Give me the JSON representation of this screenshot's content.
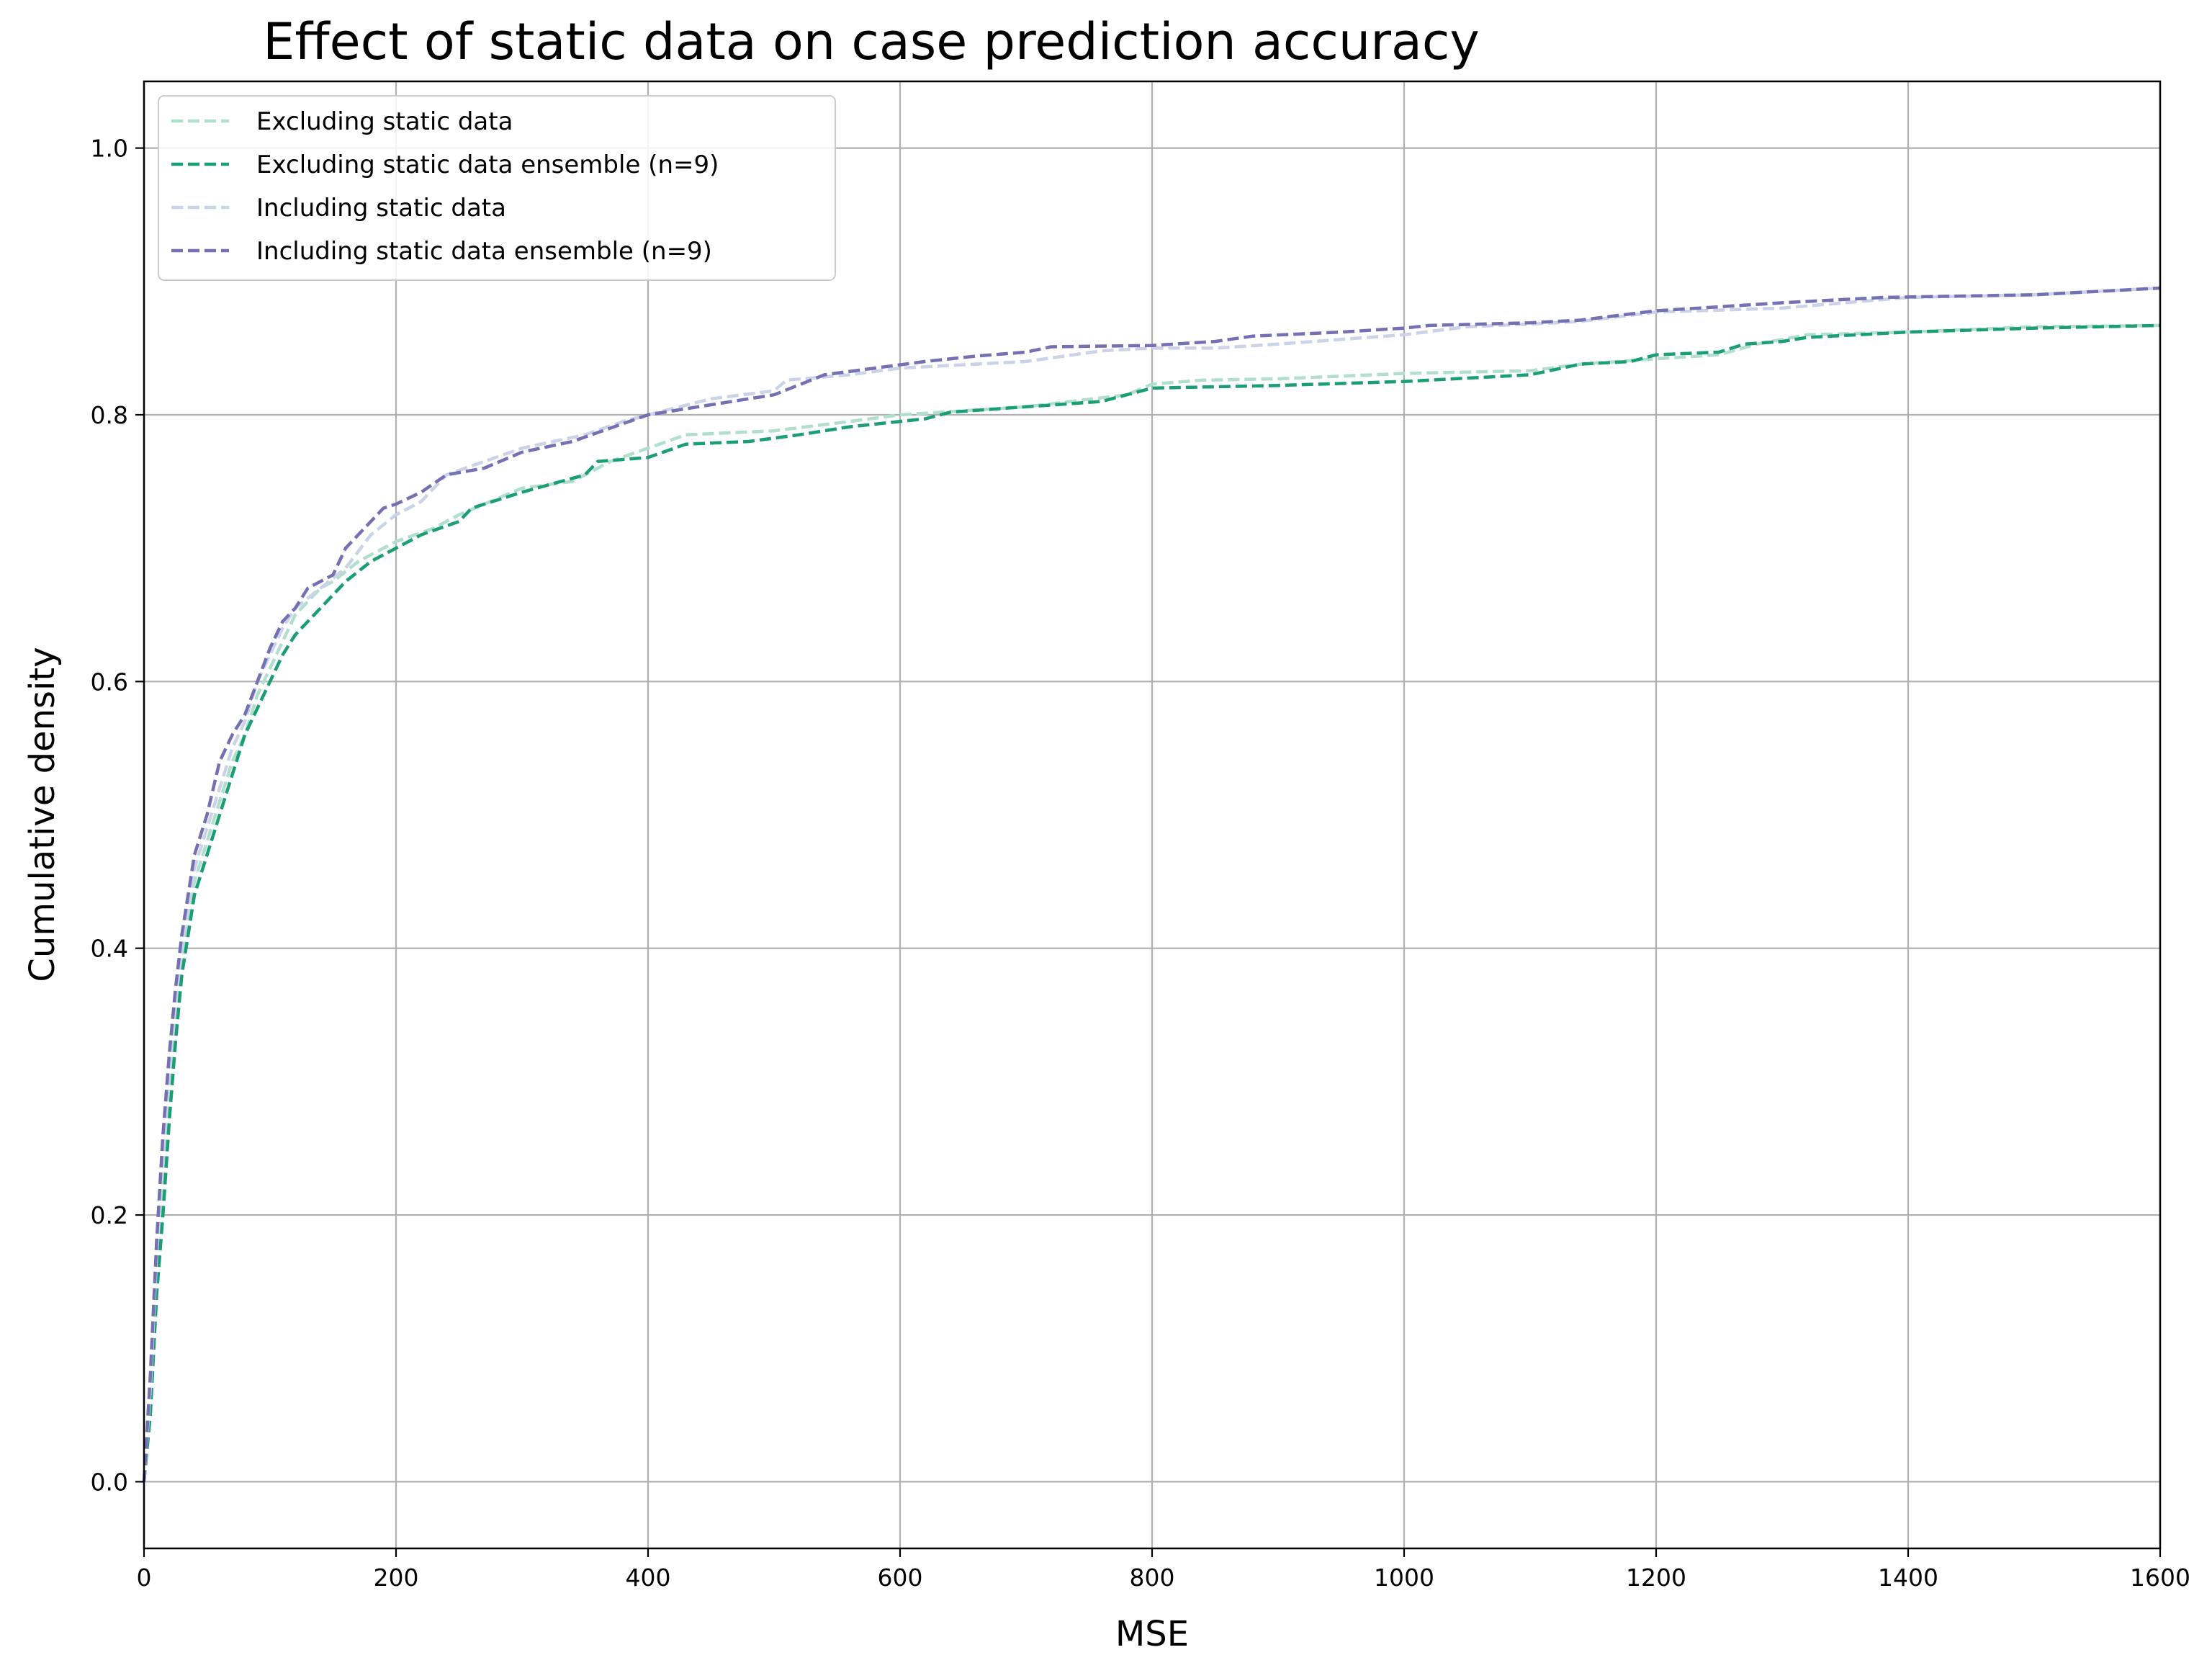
{
  "chart_data": {
    "type": "line",
    "title": "Effect of static data on case prediction accuracy",
    "xlabel": "MSE",
    "ylabel": "Cumulative density",
    "xlim": [
      0,
      1600
    ],
    "ylim": [
      -0.05,
      1.05
    ],
    "xticks": [
      0,
      200,
      400,
      600,
      800,
      1000,
      1200,
      1400,
      1600
    ],
    "xtick_labels": [
      "0",
      "200",
      "400",
      "600",
      "800",
      "1000",
      "1200",
      "1400",
      "1600"
    ],
    "yticks": [
      0.0,
      0.2,
      0.4,
      0.6,
      0.8,
      1.0
    ],
    "ytick_labels": [
      "0.0",
      "0.2",
      "0.4",
      "0.6",
      "0.8",
      "1.0"
    ],
    "grid": true,
    "legend_position": "top-left",
    "series": [
      {
        "name": "Excluding static data",
        "color": "#b2dfcc",
        "style": "dashed",
        "points": [
          [
            0,
            0.0
          ],
          [
            5,
            0.06
          ],
          [
            10,
            0.15
          ],
          [
            15,
            0.22
          ],
          [
            20,
            0.29
          ],
          [
            25,
            0.35
          ],
          [
            30,
            0.39
          ],
          [
            35,
            0.42
          ],
          [
            40,
            0.45
          ],
          [
            50,
            0.48
          ],
          [
            60,
            0.51
          ],
          [
            70,
            0.54
          ],
          [
            80,
            0.56
          ],
          [
            90,
            0.59
          ],
          [
            100,
            0.61
          ],
          [
            110,
            0.63
          ],
          [
            120,
            0.65
          ],
          [
            130,
            0.66
          ],
          [
            140,
            0.67
          ],
          [
            150,
            0.675
          ],
          [
            170,
            0.69
          ],
          [
            200,
            0.705
          ],
          [
            230,
            0.715
          ],
          [
            250,
            0.725
          ],
          [
            300,
            0.745
          ],
          [
            340,
            0.75
          ],
          [
            370,
            0.765
          ],
          [
            400,
            0.775
          ],
          [
            430,
            0.785
          ],
          [
            500,
            0.788
          ],
          [
            560,
            0.795
          ],
          [
            600,
            0.8
          ],
          [
            700,
            0.806
          ],
          [
            780,
            0.815
          ],
          [
            800,
            0.823
          ],
          [
            840,
            0.826
          ],
          [
            900,
            0.827
          ],
          [
            950,
            0.829
          ],
          [
            1000,
            0.831
          ],
          [
            1100,
            0.833
          ],
          [
            1140,
            0.838
          ],
          [
            1200,
            0.842
          ],
          [
            1250,
            0.845
          ],
          [
            1280,
            0.853
          ],
          [
            1320,
            0.86
          ],
          [
            1400,
            0.862
          ],
          [
            1500,
            0.866
          ],
          [
            1600,
            0.867
          ]
        ]
      },
      {
        "name": "Excluding static data ensemble (n=9)",
        "color": "#1b9e77",
        "style": "dashed",
        "points": [
          [
            0,
            0.0
          ],
          [
            5,
            0.05
          ],
          [
            10,
            0.14
          ],
          [
            15,
            0.2
          ],
          [
            20,
            0.27
          ],
          [
            25,
            0.33
          ],
          [
            30,
            0.38
          ],
          [
            35,
            0.41
          ],
          [
            40,
            0.44
          ],
          [
            50,
            0.47
          ],
          [
            60,
            0.5
          ],
          [
            70,
            0.53
          ],
          [
            80,
            0.56
          ],
          [
            90,
            0.58
          ],
          [
            100,
            0.6
          ],
          [
            110,
            0.62
          ],
          [
            120,
            0.635
          ],
          [
            140,
            0.655
          ],
          [
            160,
            0.675
          ],
          [
            180,
            0.69
          ],
          [
            200,
            0.7
          ],
          [
            220,
            0.71
          ],
          [
            250,
            0.72
          ],
          [
            260,
            0.73
          ],
          [
            300,
            0.742
          ],
          [
            350,
            0.755
          ],
          [
            360,
            0.765
          ],
          [
            400,
            0.768
          ],
          [
            430,
            0.778
          ],
          [
            480,
            0.78
          ],
          [
            520,
            0.785
          ],
          [
            560,
            0.791
          ],
          [
            620,
            0.797
          ],
          [
            640,
            0.802
          ],
          [
            700,
            0.806
          ],
          [
            760,
            0.81
          ],
          [
            800,
            0.82
          ],
          [
            900,
            0.822
          ],
          [
            1000,
            0.825
          ],
          [
            1100,
            0.83
          ],
          [
            1140,
            0.838
          ],
          [
            1180,
            0.84
          ],
          [
            1200,
            0.845
          ],
          [
            1250,
            0.847
          ],
          [
            1270,
            0.853
          ],
          [
            1300,
            0.855
          ],
          [
            1320,
            0.858
          ],
          [
            1400,
            0.862
          ],
          [
            1500,
            0.865
          ],
          [
            1600,
            0.867
          ]
        ]
      },
      {
        "name": "Including static data",
        "color": "#cbd3e8",
        "style": "dashed",
        "points": [
          [
            0,
            0.0
          ],
          [
            5,
            0.07
          ],
          [
            10,
            0.17
          ],
          [
            15,
            0.25
          ],
          [
            20,
            0.31
          ],
          [
            25,
            0.36
          ],
          [
            30,
            0.4
          ],
          [
            35,
            0.43
          ],
          [
            40,
            0.46
          ],
          [
            50,
            0.49
          ],
          [
            60,
            0.52
          ],
          [
            70,
            0.55
          ],
          [
            80,
            0.57
          ],
          [
            90,
            0.6
          ],
          [
            100,
            0.62
          ],
          [
            110,
            0.64
          ],
          [
            120,
            0.655
          ],
          [
            140,
            0.67
          ],
          [
            160,
            0.685
          ],
          [
            180,
            0.71
          ],
          [
            200,
            0.725
          ],
          [
            220,
            0.735
          ],
          [
            240,
            0.755
          ],
          [
            270,
            0.765
          ],
          [
            300,
            0.775
          ],
          [
            350,
            0.785
          ],
          [
            380,
            0.795
          ],
          [
            400,
            0.8
          ],
          [
            450,
            0.812
          ],
          [
            500,
            0.818
          ],
          [
            510,
            0.826
          ],
          [
            560,
            0.83
          ],
          [
            600,
            0.835
          ],
          [
            700,
            0.84
          ],
          [
            760,
            0.848
          ],
          [
            800,
            0.85
          ],
          [
            850,
            0.85
          ],
          [
            900,
            0.853
          ],
          [
            1000,
            0.86
          ],
          [
            1050,
            0.866
          ],
          [
            1100,
            0.868
          ],
          [
            1140,
            0.87
          ],
          [
            1200,
            0.877
          ],
          [
            1300,
            0.88
          ],
          [
            1400,
            0.888
          ],
          [
            1500,
            0.89
          ],
          [
            1600,
            0.895
          ]
        ]
      },
      {
        "name": "Including static data ensemble (n=9)",
        "color": "#7570b3",
        "style": "dashed",
        "points": [
          [
            0,
            0.0
          ],
          [
            5,
            0.08
          ],
          [
            10,
            0.18
          ],
          [
            15,
            0.26
          ],
          [
            20,
            0.32
          ],
          [
            25,
            0.37
          ],
          [
            30,
            0.41
          ],
          [
            35,
            0.44
          ],
          [
            40,
            0.47
          ],
          [
            50,
            0.5
          ],
          [
            60,
            0.54
          ],
          [
            70,
            0.56
          ],
          [
            80,
            0.575
          ],
          [
            90,
            0.6
          ],
          [
            100,
            0.625
          ],
          [
            110,
            0.645
          ],
          [
            120,
            0.655
          ],
          [
            130,
            0.67
          ],
          [
            150,
            0.68
          ],
          [
            160,
            0.7
          ],
          [
            180,
            0.72
          ],
          [
            190,
            0.73
          ],
          [
            200,
            0.733
          ],
          [
            220,
            0.742
          ],
          [
            240,
            0.755
          ],
          [
            270,
            0.76
          ],
          [
            300,
            0.772
          ],
          [
            340,
            0.78
          ],
          [
            370,
            0.79
          ],
          [
            400,
            0.8
          ],
          [
            440,
            0.806
          ],
          [
            500,
            0.815
          ],
          [
            540,
            0.83
          ],
          [
            580,
            0.835
          ],
          [
            620,
            0.84
          ],
          [
            660,
            0.844
          ],
          [
            700,
            0.847
          ],
          [
            720,
            0.851
          ],
          [
            800,
            0.852
          ],
          [
            850,
            0.855
          ],
          [
            880,
            0.859
          ],
          [
            950,
            0.862
          ],
          [
            1000,
            0.865
          ],
          [
            1020,
            0.867
          ],
          [
            1100,
            0.869
          ],
          [
            1140,
            0.871
          ],
          [
            1200,
            0.878
          ],
          [
            1250,
            0.881
          ],
          [
            1300,
            0.884
          ],
          [
            1380,
            0.888
          ],
          [
            1500,
            0.89
          ],
          [
            1600,
            0.895
          ]
        ]
      }
    ]
  }
}
